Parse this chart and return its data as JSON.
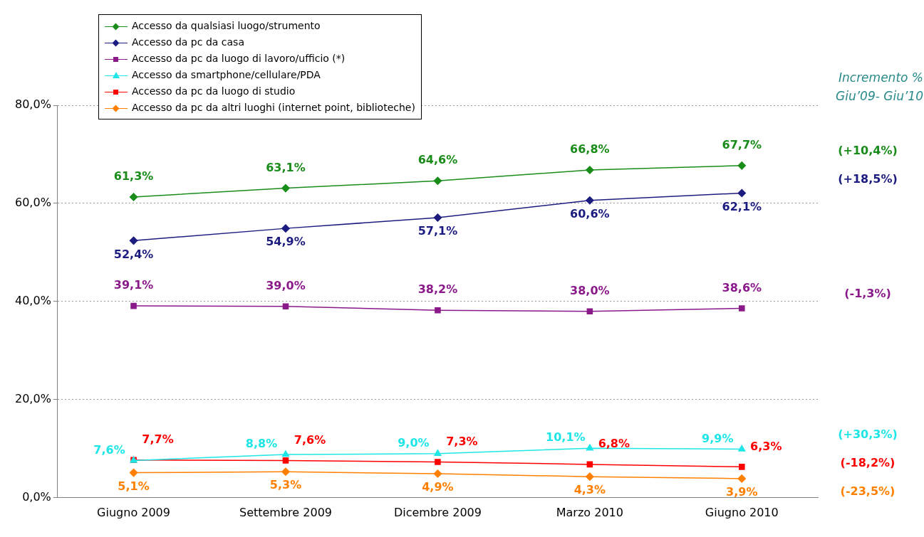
{
  "chart_data": {
    "type": "line",
    "categories": [
      "Giugno 2009",
      "Settembre 2009",
      "Dicembre 2009",
      "Marzo 2010",
      "Giugno 2010"
    ],
    "series": [
      {
        "name": "Accesso da qualsiasi luogo/strumento",
        "color": "#1a8c1a",
        "marker": "diamond",
        "values": [
          61.3,
          63.1,
          64.6,
          66.8,
          67.7
        ],
        "value_labels": [
          "61,3%",
          "63,1%",
          "64,6%",
          "66,8%",
          "67,7%"
        ]
      },
      {
        "name": "Accesso da pc da casa",
        "color": "#1c1c80",
        "marker": "diamond",
        "values": [
          52.4,
          54.9,
          57.1,
          60.6,
          62.1
        ],
        "value_labels": [
          "52,4%",
          "54,9%",
          "57,1%",
          "60,6%",
          "62,1%"
        ]
      },
      {
        "name": "Accesso da pc da luogo di lavoro/ufficio (*)",
        "color": "#8a1a8a",
        "marker": "square",
        "values": [
          39.1,
          39.0,
          38.2,
          38.0,
          38.6
        ],
        "value_labels": [
          "39,1%",
          "39,0%",
          "38,2%",
          "38,0%",
          "38,6%"
        ]
      },
      {
        "name": "Accesso da smartphone/cellulare/PDA",
        "color": "#1ee6e6",
        "marker": "triangle",
        "values": [
          7.6,
          8.8,
          9.0,
          10.1,
          9.9
        ],
        "value_labels": [
          "7,6%",
          "8,8%",
          "9,0%",
          "10,1%",
          "9,9%"
        ]
      },
      {
        "name": "Accesso da pc da luogo di studio",
        "color": "#ff0000",
        "marker": "square",
        "values": [
          7.7,
          7.6,
          7.3,
          6.8,
          6.3
        ],
        "value_labels": [
          "7,7%",
          "7,6%",
          "7,3%",
          "6,8%",
          "6,3%"
        ]
      },
      {
        "name": "Accesso da pc da altri luoghi (internet point, biblioteche)",
        "color": "#ff8000",
        "marker": "diamond",
        "values": [
          5.1,
          5.3,
          4.9,
          4.3,
          3.9
        ],
        "value_labels": [
          "5,1%",
          "5,3%",
          "4,9%",
          "4,3%",
          "3,9%"
        ]
      }
    ],
    "ylim": [
      0,
      80
    ],
    "yticks": [
      {
        "value": 0,
        "label": "0,0%"
      },
      {
        "value": 20,
        "label": "20,0%"
      },
      {
        "value": 40,
        "label": "40,0%"
      },
      {
        "value": 60,
        "label": "60,0%"
      },
      {
        "value": 80,
        "label": "80,0%"
      }
    ],
    "grid": "y",
    "legend": "top left",
    "line_style": "solid",
    "annotations": [
      "Incremento % Giu’09- Giu’10",
      "(+10,4%)",
      "(+18,5%)",
      "(-1,3%)",
      "(+30,3%)",
      "(-18,2%)",
      "(-23,5%)"
    ]
  }
}
